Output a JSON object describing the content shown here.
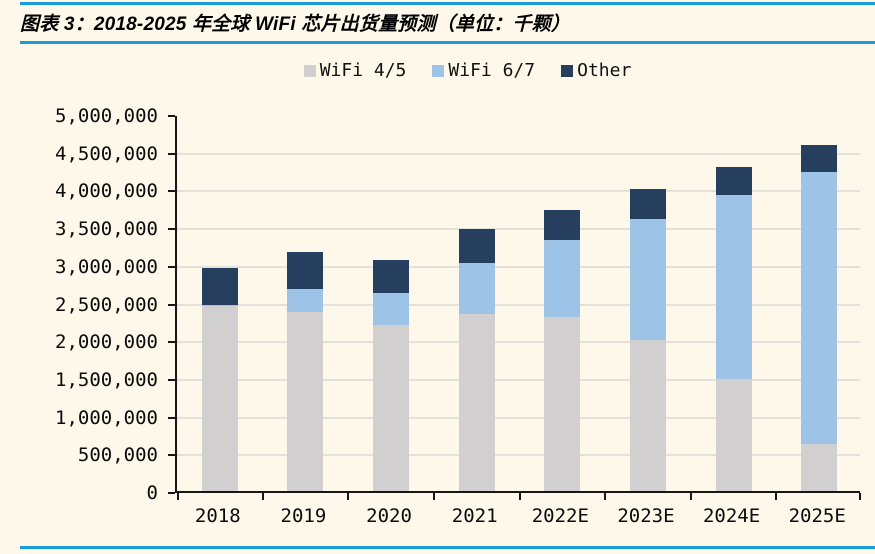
{
  "header": {
    "title": "图表 3：2018-2025 年全球 WiFi 芯片出货量预测（单位：千颗）"
  },
  "chart_data": {
    "type": "bar",
    "stacked": true,
    "title": "2018-2025 年全球 WiFi 芯片出货量预测",
    "unit_label": "千颗",
    "categories": [
      "2018",
      "2019",
      "2020",
      "2021",
      "2022E",
      "2023E",
      "2024E",
      "2025E"
    ],
    "series": [
      {
        "name": "WiFi 4/5",
        "color": "#D1CFCF",
        "values": [
          2450000,
          2380000,
          2200000,
          2350000,
          2310000,
          2000000,
          1490000,
          620000
        ]
      },
      {
        "name": "WiFi 6/7",
        "color": "#9DC3E6",
        "values": [
          20000,
          300000,
          430000,
          680000,
          1020000,
          1610000,
          2440000,
          3610000
        ]
      },
      {
        "name": "Other",
        "color": "#263F5E",
        "values": [
          490000,
          490000,
          430000,
          440000,
          400000,
          390000,
          370000,
          360000
        ]
      }
    ],
    "ylim": [
      0,
      5000000
    ],
    "y_tick_step": 500000,
    "y_tick_labels": [
      "0",
      "500,000",
      "1,000,000",
      "1,500,000",
      "2,000,000",
      "2,500,000",
      "3,000,000",
      "3,500,000",
      "4,000,000",
      "4,500,000",
      "5,000,000"
    ],
    "grid": true,
    "legend_position": "top",
    "xlabel": "",
    "ylabel": ""
  },
  "colors": {
    "background": "#FDF8EA",
    "divider_blue": "#1B9CD9",
    "gridline": "#E4E1DA",
    "axis": "#161616"
  }
}
